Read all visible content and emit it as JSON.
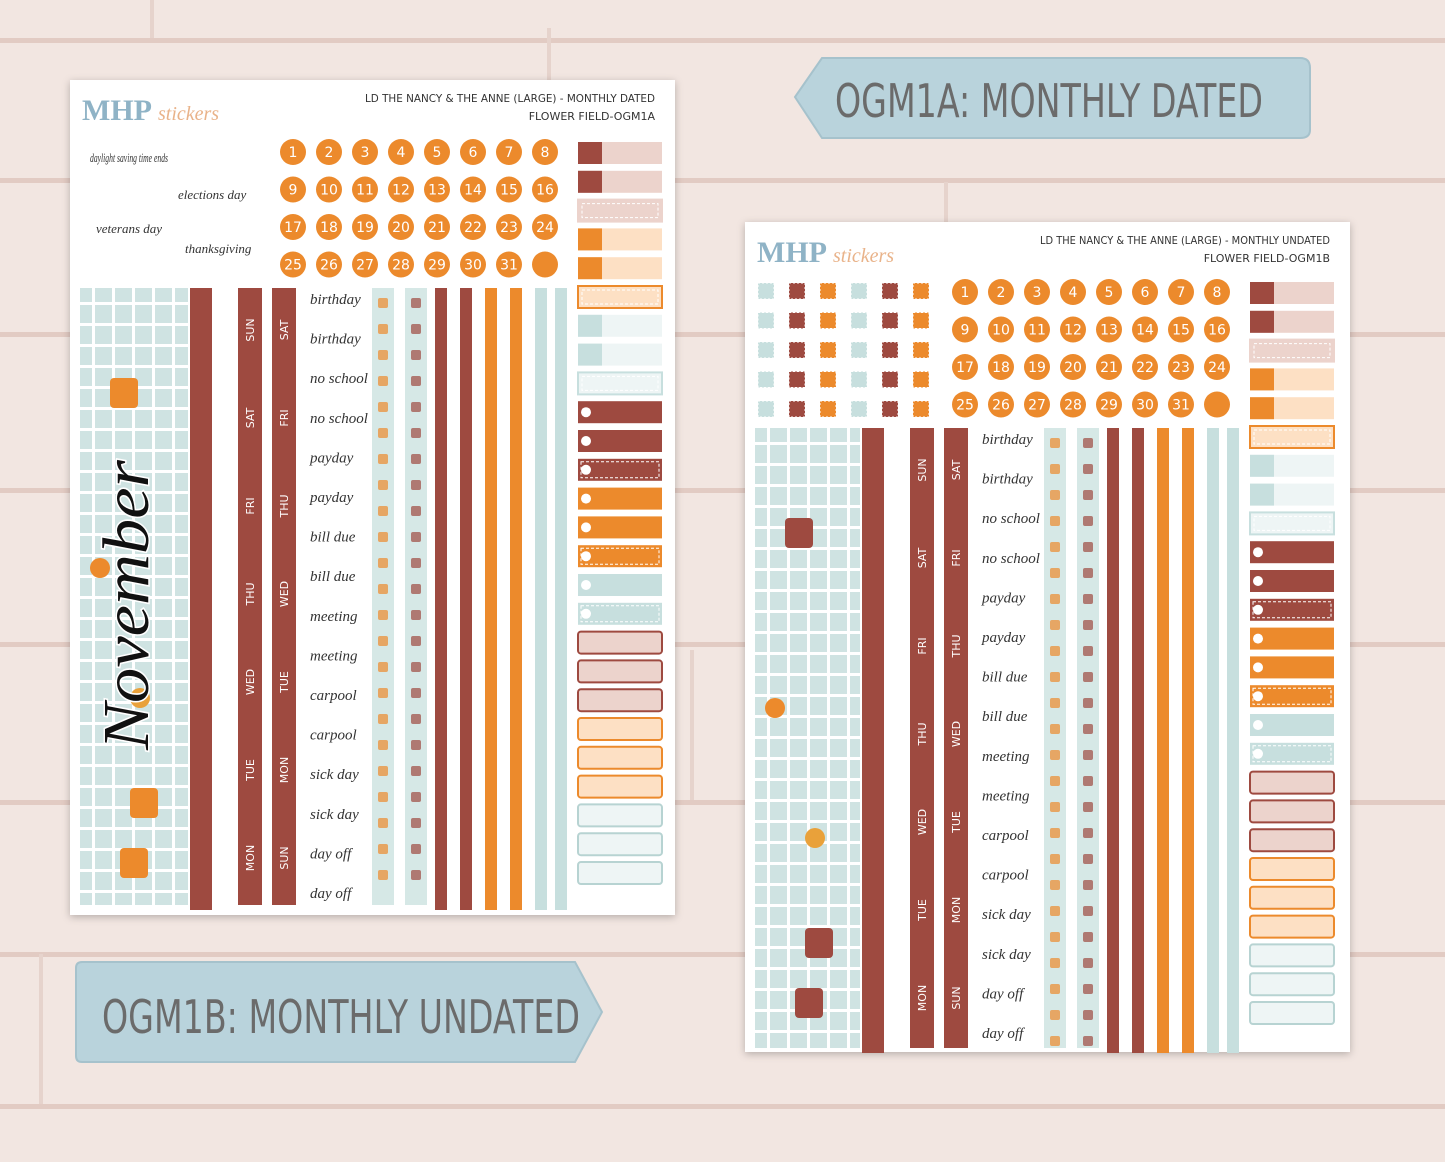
{
  "banners": [
    {
      "text": "OGM1A: MONTHLY DATED"
    },
    {
      "text": "OGM1B: MONTHLY UNDATED"
    }
  ],
  "sheets": [
    {
      "logo": "MHP",
      "logo_script": "stickers",
      "title": "LD THE NANCY & THE ANNE (LARGE) - MONTHLY DATED",
      "subtitle": "FLOWER FIELD-OGM1A",
      "labels": [
        "daylight saving time ends",
        "elections day",
        "veterans day",
        "thanksgiving"
      ],
      "month": "November",
      "dates": [
        1,
        2,
        3,
        4,
        5,
        6,
        7,
        8,
        9,
        10,
        11,
        12,
        13,
        14,
        15,
        16,
        17,
        18,
        19,
        20,
        21,
        22,
        23,
        24,
        25,
        26,
        27,
        28,
        29,
        30,
        31
      ],
      "day_columns": [
        [
          "SUN",
          "SAT",
          "FRI",
          "THU",
          "WED",
          "TUE",
          "MON"
        ],
        [
          "SAT",
          "FRI",
          "THU",
          "WED",
          "TUE",
          "MON",
          "SUN"
        ]
      ],
      "words": [
        "birthday",
        "birthday",
        "no school",
        "no school",
        "payday",
        "payday",
        "bill due",
        "bill due",
        "meeting",
        "meeting",
        "carpool",
        "carpool",
        "sick day",
        "sick day",
        "day off",
        "day off"
      ]
    },
    {
      "logo": "MHP",
      "logo_script": "stickers",
      "title": "LD THE NANCY & THE ANNE (LARGE) - MONTHLY UNDATED",
      "subtitle": "FLOWER FIELD-OGM1B",
      "dates": [
        1,
        2,
        3,
        4,
        5,
        6,
        7,
        8,
        9,
        10,
        11,
        12,
        13,
        14,
        15,
        16,
        17,
        18,
        19,
        20,
        21,
        22,
        23,
        24,
        25,
        26,
        27,
        28,
        29,
        30,
        31
      ],
      "day_columns": [
        [
          "SUN",
          "SAT",
          "FRI",
          "THU",
          "WED",
          "TUE",
          "MON"
        ],
        [
          "SAT",
          "FRI",
          "THU",
          "WED",
          "TUE",
          "MON",
          "SUN"
        ]
      ],
      "words": [
        "birthday",
        "birthday",
        "no school",
        "no school",
        "payday",
        "payday",
        "bill due",
        "bill due",
        "meeting",
        "meeting",
        "carpool",
        "carpool",
        "sick day",
        "sick day",
        "day off",
        "day off"
      ]
    }
  ]
}
